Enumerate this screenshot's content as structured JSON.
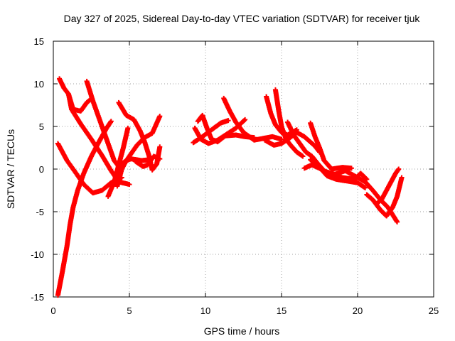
{
  "chart_data": {
    "type": "scatter",
    "title": "Day 327 of 2025, Sidereal Day-to-day VTEC variation (SDTVAR) for receiver tjuk",
    "xlabel": "GPS time / hours",
    "ylabel": "SDTVAR / TECUs",
    "xlim": [
      0,
      25
    ],
    "ylim": [
      -15,
      15
    ],
    "xticks": [
      0,
      5,
      10,
      15,
      20,
      25
    ],
    "yticks": [
      -15,
      -10,
      -5,
      0,
      5,
      10,
      15
    ],
    "xtick_labels": [
      "0",
      "5",
      "10",
      "15",
      "20",
      "25"
    ],
    "ytick_labels": [
      "-15",
      "-10",
      "-5",
      "0",
      "5",
      "10",
      "15"
    ],
    "grid": true,
    "marker": "+",
    "color": "#ff0000",
    "series": [
      {
        "points": [
          [
            0.3,
            -14.8
          ],
          [
            0.6,
            -12
          ],
          [
            0.9,
            -9
          ],
          [
            1.1,
            -6.5
          ],
          [
            1.3,
            -4.5
          ],
          [
            1.6,
            -2.5
          ],
          [
            2.0,
            -0.5
          ],
          [
            2.5,
            1.5
          ],
          [
            3.0,
            3.2
          ],
          [
            3.5,
            4.8
          ],
          [
            3.8,
            5.6
          ]
        ]
      },
      {
        "points": [
          [
            0.4,
            10.6
          ],
          [
            0.7,
            9.5
          ],
          [
            1.0,
            8.8
          ],
          [
            1.3,
            7.0
          ],
          [
            1.8,
            6.8
          ],
          [
            2.2,
            7.8
          ],
          [
            2.4,
            8.1
          ]
        ]
      },
      {
        "points": [
          [
            1.0,
            8.8
          ],
          [
            1.2,
            7.0
          ],
          [
            1.8,
            5.3
          ],
          [
            2.5,
            3.5
          ],
          [
            3.2,
            1.6
          ],
          [
            3.8,
            -0.2
          ],
          [
            4.3,
            -1.5
          ],
          [
            5.0,
            -1.8
          ]
        ]
      },
      {
        "points": [
          [
            2.2,
            10.3
          ],
          [
            2.6,
            8.0
          ],
          [
            3.1,
            5.5
          ],
          [
            3.6,
            3.0
          ],
          [
            4.0,
            1.0
          ],
          [
            4.3,
            0.3
          ],
          [
            4.7,
            0.9
          ],
          [
            5.1,
            1.2
          ],
          [
            5.8,
            1.0
          ],
          [
            6.3,
            1.1
          ]
        ]
      },
      {
        "points": [
          [
            0.3,
            3.0
          ],
          [
            0.9,
            1.0
          ],
          [
            1.5,
            -0.5
          ],
          [
            2.0,
            -1.8
          ],
          [
            2.6,
            -2.8
          ],
          [
            3.2,
            -2.5
          ],
          [
            3.8,
            -1.6
          ],
          [
            4.5,
            -1.0
          ]
        ]
      },
      {
        "points": [
          [
            3.6,
            -3.2
          ],
          [
            4.0,
            -1.5
          ],
          [
            4.3,
            0.5
          ],
          [
            4.6,
            2.5
          ],
          [
            4.9,
            4.8
          ]
        ]
      },
      {
        "points": [
          [
            4.2,
            -2.0
          ],
          [
            4.5,
            0.0
          ],
          [
            4.8,
            1.0
          ],
          [
            5.5,
            2.8
          ],
          [
            6.0,
            3.7
          ],
          [
            6.5,
            4.2
          ],
          [
            7.0,
            6.2
          ]
        ]
      },
      {
        "points": [
          [
            4.3,
            7.8
          ],
          [
            4.8,
            6.3
          ],
          [
            5.3,
            5.8
          ],
          [
            5.7,
            4.5
          ],
          [
            6.0,
            3.2
          ],
          [
            6.3,
            1.5
          ],
          [
            6.5,
            -0.1
          ],
          [
            6.8,
            0.6
          ],
          [
            7.0,
            2.6
          ]
        ]
      },
      {
        "points": [
          [
            5.4,
            0.9
          ],
          [
            5.9,
            0.3
          ],
          [
            6.2,
            0.5
          ],
          [
            6.6,
            1.5
          ],
          [
            7.0,
            1.2
          ]
        ]
      },
      {
        "points": [
          [
            9.3,
            4.8
          ],
          [
            9.7,
            3.5
          ],
          [
            10.2,
            3.0
          ],
          [
            10.8,
            3.4
          ],
          [
            11.4,
            4.1
          ],
          [
            12.0,
            4.8
          ],
          [
            12.6,
            5.8
          ]
        ]
      },
      {
        "points": [
          [
            9.2,
            3.1
          ],
          [
            9.8,
            3.8
          ],
          [
            10.4,
            4.6
          ],
          [
            11.0,
            5.4
          ],
          [
            11.5,
            5.7
          ]
        ]
      },
      {
        "points": [
          [
            9.5,
            5.6
          ],
          [
            9.8,
            6.3
          ],
          [
            10.1,
            4.8
          ],
          [
            10.4,
            3.5
          ],
          [
            10.8,
            3.2
          ],
          [
            11.3,
            3.9
          ],
          [
            12.0,
            4.0
          ],
          [
            12.6,
            3.8
          ],
          [
            13.2,
            3.7
          ]
        ]
      },
      {
        "points": [
          [
            11.2,
            8.3
          ],
          [
            11.6,
            6.8
          ],
          [
            12.0,
            5.5
          ],
          [
            12.5,
            4.3
          ],
          [
            13.2,
            3.4
          ],
          [
            13.8,
            3.6
          ],
          [
            14.4,
            3.8
          ],
          [
            15.0,
            3.5
          ]
        ]
      },
      {
        "points": [
          [
            14.0,
            8.5
          ],
          [
            14.3,
            6.5
          ],
          [
            14.6,
            5.2
          ],
          [
            15.0,
            4.3
          ],
          [
            15.4,
            4.0
          ],
          [
            16.0,
            4.6
          ]
        ]
      },
      {
        "points": [
          [
            14.6,
            9.3
          ],
          [
            14.8,
            7.0
          ],
          [
            15.0,
            5.0
          ],
          [
            15.3,
            3.5
          ],
          [
            15.6,
            2.8
          ],
          [
            16.0,
            2.0
          ],
          [
            16.4,
            1.5
          ]
        ]
      },
      {
        "points": [
          [
            13.9,
            3.4
          ],
          [
            14.5,
            2.8
          ],
          [
            15.0,
            3.0
          ],
          [
            15.5,
            3.6
          ],
          [
            16.0,
            4.3
          ],
          [
            16.5,
            3.8
          ],
          [
            17.2,
            2.7
          ],
          [
            17.5,
            2.0
          ]
        ]
      },
      {
        "points": [
          [
            15.4,
            5.5
          ],
          [
            15.8,
            4.0
          ],
          [
            16.2,
            3.0
          ],
          [
            16.6,
            2.0
          ],
          [
            17.0,
            1.5
          ],
          [
            17.4,
            0.6
          ],
          [
            17.8,
            -0.2
          ]
        ]
      },
      {
        "points": [
          [
            16.9,
            5.4
          ],
          [
            17.2,
            3.8
          ],
          [
            17.5,
            2.5
          ],
          [
            17.8,
            1.0
          ],
          [
            18.3,
            0.0
          ],
          [
            19.0,
            0.2
          ],
          [
            19.6,
            0.1
          ]
        ]
      },
      {
        "points": [
          [
            16.5,
            0.1
          ],
          [
            17.0,
            0.5
          ],
          [
            17.6,
            0.0
          ],
          [
            18.2,
            -0.6
          ],
          [
            19.0,
            -1.0
          ],
          [
            19.8,
            -1.2
          ],
          [
            20.2,
            -0.5
          ],
          [
            20.6,
            -1.2
          ]
        ]
      },
      {
        "points": [
          [
            16.9,
            1.1
          ],
          [
            17.5,
            0.2
          ],
          [
            18.0,
            -0.8
          ],
          [
            18.6,
            -1.2
          ],
          [
            19.3,
            -1.4
          ],
          [
            20.0,
            -1.6
          ],
          [
            20.5,
            -2.2
          ]
        ]
      },
      {
        "points": [
          [
            17.7,
            -0.2
          ],
          [
            18.5,
            -0.6
          ],
          [
            19.2,
            -0.2
          ],
          [
            19.8,
            -0.8
          ],
          [
            20.5,
            -1.5
          ],
          [
            21.0,
            -2.5
          ],
          [
            21.5,
            -3.6
          ],
          [
            22.0,
            -4.5
          ],
          [
            22.6,
            -6.2
          ]
        ]
      },
      {
        "points": [
          [
            20.6,
            -3.0
          ],
          [
            21.0,
            -3.6
          ],
          [
            21.5,
            -4.8
          ],
          [
            21.9,
            -5.5
          ],
          [
            22.3,
            -4.5
          ],
          [
            22.6,
            -3.2
          ],
          [
            22.9,
            -1.0
          ]
        ]
      },
      {
        "points": [
          [
            21.3,
            -4.0
          ],
          [
            21.6,
            -3.5
          ],
          [
            21.9,
            -2.5
          ],
          [
            22.2,
            -1.5
          ],
          [
            22.5,
            -0.5
          ],
          [
            22.7,
            0.0
          ]
        ]
      }
    ]
  }
}
